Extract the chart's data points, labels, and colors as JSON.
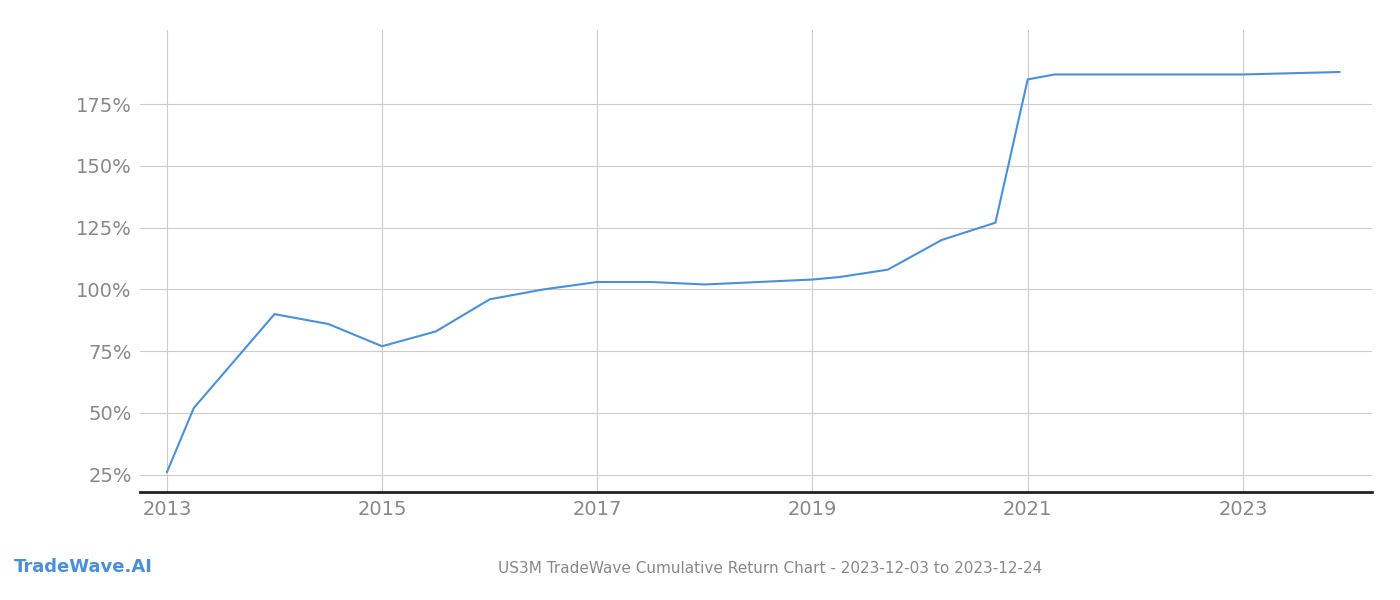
{
  "title": "US3M TradeWave Cumulative Return Chart - 2023-12-03 to 2023-12-24",
  "watermark": "TradeWave.AI",
  "line_color": "#4a90d9",
  "background_color": "#ffffff",
  "grid_color": "#cccccc",
  "x_values": [
    2013.0,
    2013.25,
    2014.0,
    2014.5,
    2015.0,
    2015.5,
    2016.0,
    2016.5,
    2017.0,
    2017.5,
    2018.0,
    2018.5,
    2019.0,
    2019.25,
    2019.7,
    2020.2,
    2020.7,
    2021.0,
    2021.25,
    2022.0,
    2022.5,
    2023.0,
    2023.9
  ],
  "y_values": [
    26,
    52,
    90,
    86,
    77,
    83,
    96,
    100,
    103,
    103,
    102,
    103,
    104,
    105,
    108,
    120,
    127,
    185,
    187,
    187,
    187,
    187,
    188
  ],
  "yticks": [
    25,
    50,
    75,
    100,
    125,
    150,
    175
  ],
  "ytick_labels": [
    "25%",
    "50%",
    "75%",
    "100%",
    "125%",
    "150%",
    "175%"
  ],
  "xticks": [
    2013,
    2015,
    2017,
    2019,
    2021,
    2023
  ],
  "xlim": [
    2012.75,
    2024.2
  ],
  "ylim": [
    18,
    205
  ]
}
